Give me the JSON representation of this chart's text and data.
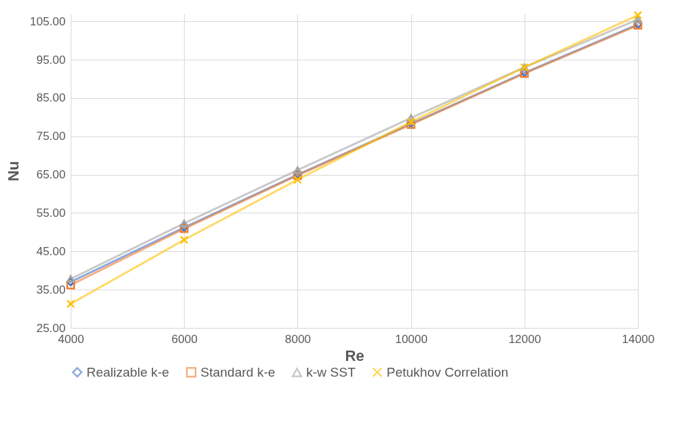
{
  "chart_data": {
    "type": "line",
    "xlabel": "Re",
    "ylabel": "Nu",
    "x": [
      4000,
      6000,
      8000,
      10000,
      12000,
      14000
    ],
    "series": [
      {
        "name": "Realizable k-e",
        "color": "#4472c4",
        "marker": "diamond",
        "values": [
          37.0,
          51.2,
          65.0,
          78.3,
          91.6,
          104.2
        ]
      },
      {
        "name": "Standard k-e",
        "color": "#ed7d31",
        "marker": "square",
        "values": [
          36.2,
          50.9,
          64.8,
          78.1,
          91.4,
          104.0
        ]
      },
      {
        "name": "k-w SST",
        "color": "#a5a5a5",
        "marker": "triangle",
        "values": [
          37.8,
          52.3,
          66.2,
          79.8,
          93.0,
          105.5
        ]
      },
      {
        "name": "Petukhov Correlation",
        "color": "#ffc000",
        "marker": "cross",
        "values": [
          31.3,
          48.0,
          63.7,
          78.8,
          93.0,
          106.6
        ]
      }
    ],
    "xlim": [
      4000,
      14000
    ],
    "xticks": [
      4000,
      6000,
      8000,
      10000,
      12000,
      14000
    ],
    "ylim": [
      25,
      107
    ],
    "yticks": [
      {
        "value": 25,
        "label": "25.00"
      },
      {
        "value": 35,
        "label": "35.00"
      },
      {
        "value": 45,
        "label": "45.00"
      },
      {
        "value": 55,
        "label": "55.00"
      },
      {
        "value": 65,
        "label": "65.00"
      },
      {
        "value": 75,
        "label": "75.00"
      },
      {
        "value": 85,
        "label": "85.00"
      },
      {
        "value": 95,
        "label": "95.00"
      },
      {
        "value": 105,
        "label": "105.00"
      }
    ],
    "grid": true,
    "legend": "bottom"
  }
}
